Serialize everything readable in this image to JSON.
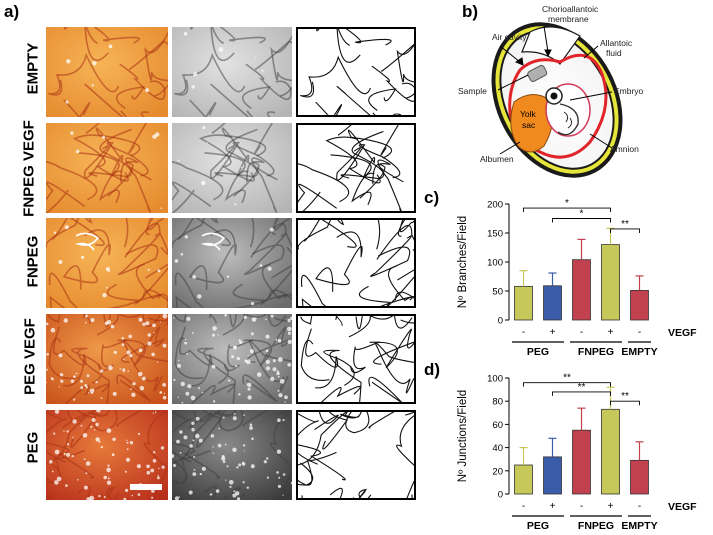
{
  "panels": {
    "a": {
      "label": "a)",
      "rows": [
        {
          "name": "EMPTY"
        },
        {
          "name": "FNPEG VEGF"
        },
        {
          "name": "FNPEG"
        },
        {
          "name": "PEG VEGF"
        },
        {
          "name": "PEG"
        }
      ]
    },
    "b": {
      "label": "b)",
      "annotations": {
        "chorioallantoic": "Chorioallantoic",
        "membrane": "membrane",
        "air_cavity": "Air cavity",
        "allantoic": "Allantoic",
        "fluid": "fluid",
        "sample": "Sample",
        "embryo": "Embryo",
        "yolk": "Yolk",
        "sac": "sac",
        "albumen": "Albumen",
        "amnion": "Amnion"
      },
      "colors": {
        "shell_outline": "#1a1a1a",
        "yellow_band": "#e6e63a",
        "membrane": "#e0242a",
        "yolk": "#f08a1e",
        "sample": "#b0b0b0"
      }
    },
    "c": {
      "label": "c)"
    },
    "d": {
      "label": "d)"
    }
  },
  "chart_data": [
    {
      "type": "bar",
      "panel": "c",
      "ylabel": "Nº Branches/Field",
      "ylim": [
        0,
        200
      ],
      "yticks": [
        0,
        50,
        100,
        150,
        200
      ],
      "bars": [
        {
          "group": "PEG",
          "vegf": "-",
          "value": 58,
          "err": 27,
          "color": "#c6c85a"
        },
        {
          "group": "PEG",
          "vegf": "+",
          "value": 59,
          "err": 22,
          "color": "#3b5ca8"
        },
        {
          "group": "FNPEG",
          "vegf": "-",
          "value": 104,
          "err": 35,
          "color": "#c2414e"
        },
        {
          "group": "FNPEG",
          "vegf": "+",
          "value": 130,
          "err": 28,
          "color": "#c6c85a"
        },
        {
          "group": "EMPTY",
          "vegf": "-",
          "value": 51,
          "err": 25,
          "color": "#c2414e"
        }
      ],
      "group_labels": [
        "PEG",
        "FNPEG",
        "EMPTY"
      ],
      "vegf_label": "VEGF",
      "significance": [
        {
          "from": 0,
          "to": 3,
          "label": "*",
          "y": 193
        },
        {
          "from": 1,
          "to": 3,
          "label": "*",
          "y": 175
        },
        {
          "from": 3,
          "to": 4,
          "label": "**",
          "y": 157
        }
      ]
    },
    {
      "type": "bar",
      "panel": "d",
      "ylabel": "Nº Junctions/Field",
      "ylim": [
        0,
        100
      ],
      "yticks": [
        0,
        20,
        40,
        60,
        80,
        100
      ],
      "bars": [
        {
          "group": "PEG",
          "vegf": "-",
          "value": 25,
          "err": 15,
          "color": "#c6c85a"
        },
        {
          "group": "PEG",
          "vegf": "+",
          "value": 32,
          "err": 16,
          "color": "#3b5ca8"
        },
        {
          "group": "FNPEG",
          "vegf": "-",
          "value": 55,
          "err": 19,
          "color": "#c2414e"
        },
        {
          "group": "FNPEG",
          "vegf": "+",
          "value": 73,
          "err": 19,
          "color": "#c6c85a"
        },
        {
          "group": "EMPTY",
          "vegf": "-",
          "value": 29,
          "err": 16,
          "color": "#c2414e"
        }
      ],
      "group_labels": [
        "PEG",
        "FNPEG",
        "EMPTY"
      ],
      "vegf_label": "VEGF",
      "significance": [
        {
          "from": 0,
          "to": 3,
          "label": "**",
          "y": 96
        },
        {
          "from": 1,
          "to": 3,
          "label": "**",
          "y": 88
        },
        {
          "from": 3,
          "to": 4,
          "label": "**",
          "y": 80
        }
      ]
    }
  ]
}
